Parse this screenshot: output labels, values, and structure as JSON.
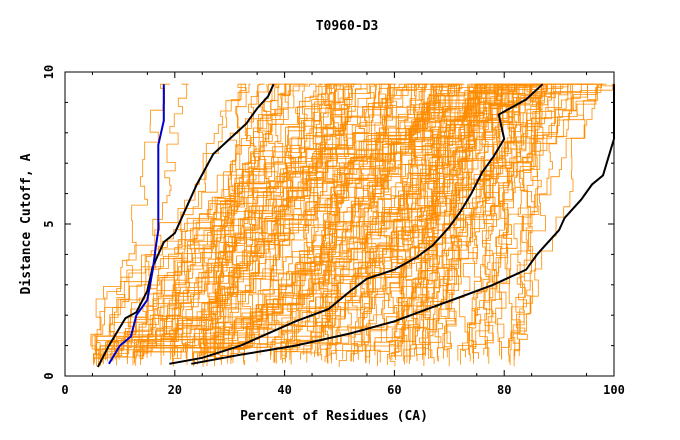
{
  "chart_data": {
    "type": "line",
    "title": "T0960-D3",
    "xlabel": "Percent of Residues (CA)",
    "ylabel": "Distance Cutoff, A",
    "xlim": [
      0,
      100
    ],
    "ylim": [
      0,
      10
    ],
    "x_ticks": [
      "0",
      "20",
      "40",
      "60",
      "80",
      "100"
    ],
    "y_ticks": [
      "0",
      "5",
      "10"
    ],
    "grid": false,
    "legend": "none",
    "colors": {
      "background_models": "#ff8c00",
      "highlight_black": "#000000",
      "highlight_blue": "#0000cc"
    },
    "background_series_count": 180,
    "background_x_range_at_y0_5": [
      5,
      84
    ],
    "background_x_range_at_y9_5": [
      17,
      100
    ],
    "highlight_series": [
      {
        "color": "#000000",
        "points": [
          [
            6,
            0.3
          ],
          [
            8,
            1.0
          ],
          [
            10,
            1.6
          ],
          [
            11,
            1.9
          ],
          [
            13,
            2.1
          ],
          [
            15,
            2.8
          ],
          [
            16,
            3.6
          ],
          [
            17,
            4.0
          ],
          [
            18,
            4.4
          ],
          [
            20,
            4.7
          ],
          [
            22,
            5.5
          ],
          [
            24,
            6.3
          ],
          [
            27,
            7.3
          ],
          [
            30,
            7.8
          ],
          [
            33,
            8.3
          ],
          [
            35,
            8.8
          ],
          [
            37,
            9.2
          ],
          [
            38,
            9.6
          ]
        ]
      },
      {
        "color": "#0000cc",
        "points": [
          [
            8,
            0.4
          ],
          [
            10,
            1.0
          ],
          [
            12,
            1.3
          ],
          [
            13,
            2.0
          ],
          [
            15,
            2.5
          ],
          [
            16,
            3.5
          ],
          [
            16.5,
            4.2
          ],
          [
            17,
            4.8
          ],
          [
            17,
            5.8
          ],
          [
            17,
            7.0
          ],
          [
            17,
            7.6
          ],
          [
            18,
            8.4
          ],
          [
            18,
            9.6
          ]
        ]
      },
      {
        "color": "#000000",
        "points": [
          [
            19,
            0.4
          ],
          [
            25,
            0.6
          ],
          [
            32,
            1.0
          ],
          [
            37,
            1.4
          ],
          [
            42,
            1.8
          ],
          [
            48,
            2.2
          ],
          [
            52,
            2.8
          ],
          [
            55,
            3.2
          ],
          [
            60,
            3.5
          ],
          [
            64,
            3.9
          ],
          [
            67,
            4.3
          ],
          [
            70,
            4.9
          ],
          [
            72,
            5.4
          ],
          [
            74,
            6.0
          ],
          [
            76,
            6.7
          ],
          [
            78,
            7.2
          ],
          [
            80,
            7.8
          ],
          [
            79,
            8.6
          ],
          [
            84,
            9.1
          ],
          [
            87,
            9.6
          ]
        ]
      },
      {
        "color": "#000000",
        "points": [
          [
            23,
            0.4
          ],
          [
            32,
            0.7
          ],
          [
            42,
            1.0
          ],
          [
            52,
            1.4
          ],
          [
            60,
            1.8
          ],
          [
            66,
            2.2
          ],
          [
            72,
            2.6
          ],
          [
            78,
            3.0
          ],
          [
            84,
            3.5
          ],
          [
            86,
            4.0
          ],
          [
            88,
            4.4
          ],
          [
            90,
            4.8
          ],
          [
            91,
            5.2
          ],
          [
            94,
            5.8
          ],
          [
            96,
            6.3
          ],
          [
            98,
            6.6
          ],
          [
            99,
            7.2
          ],
          [
            100,
            7.8
          ],
          [
            100,
            8.5
          ],
          [
            100,
            9.6
          ]
        ]
      }
    ]
  }
}
